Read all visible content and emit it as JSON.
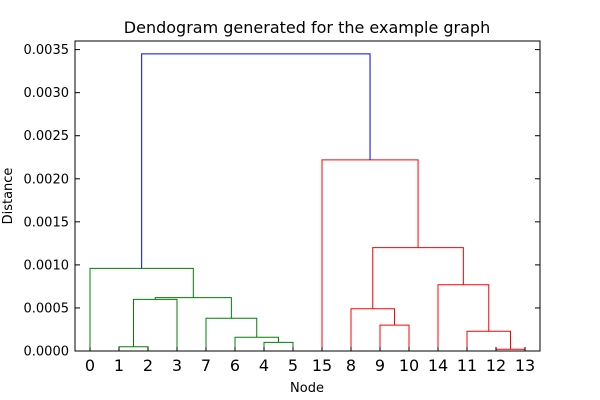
{
  "chart_data": {
    "type": "dendrogram",
    "title": "Dendogram generated for the example graph",
    "xlabel": "Node",
    "ylabel": "Distance",
    "ylim": [
      0,
      0.0036
    ],
    "yticks": [
      "0.0000",
      "0.0005",
      "0.0010",
      "0.0015",
      "0.0020",
      "0.0025",
      "0.0030",
      "0.0035"
    ],
    "ytick_values": [
      0,
      0.0005,
      0.001,
      0.0015,
      0.002,
      0.0025,
      0.003,
      0.0035
    ],
    "leaf_order": [
      "0",
      "1",
      "2",
      "3",
      "7",
      "6",
      "4",
      "5",
      "15",
      "8",
      "9",
      "10",
      "14",
      "11",
      "12",
      "13"
    ],
    "grid": false,
    "colors": {
      "blue": "#0000ff",
      "green": "#008000",
      "red": "#ff0000"
    },
    "merges": [
      {
        "left": "1",
        "right": "2",
        "height": 5e-05,
        "color": "green"
      },
      {
        "left": "4",
        "right": "5",
        "height": 0.0001,
        "color": "green"
      },
      {
        "left": "6",
        "right": "(4,5)",
        "height": 0.00016,
        "color": "green"
      },
      {
        "left": "7",
        "right": "(6,4,5)",
        "height": 0.00038,
        "color": "green"
      },
      {
        "left": "(1,2)",
        "right": "3",
        "height": 0.0006,
        "color": "green"
      },
      {
        "left": "(1,2,3)",
        "right": "(7,6,4,5)",
        "height": 0.00062,
        "color": "green"
      },
      {
        "left": "0",
        "right": "(1,2,3,7,6,4,5)",
        "height": 0.00096,
        "color": "green"
      },
      {
        "left": "12",
        "right": "13",
        "height": 2e-05,
        "color": "red"
      },
      {
        "left": "11",
        "right": "(12,13)",
        "height": 0.00023,
        "color": "red"
      },
      {
        "left": "9",
        "right": "10",
        "height": 0.0003,
        "color": "red"
      },
      {
        "left": "8",
        "right": "(9,10)",
        "height": 0.00049,
        "color": "red"
      },
      {
        "left": "14",
        "right": "(11,12,13)",
        "height": 0.00077,
        "color": "red"
      },
      {
        "left": "(8,9,10)",
        "right": "(14,11,12,13)",
        "height": 0.0012,
        "color": "red"
      },
      {
        "left": "15",
        "right": "(8,9,10,14,11,12,13)",
        "height": 0.00222,
        "color": "red"
      },
      {
        "left": "(0..5,7)",
        "right": "(8..15)",
        "height": 0.00345,
        "color": "blue"
      }
    ]
  }
}
